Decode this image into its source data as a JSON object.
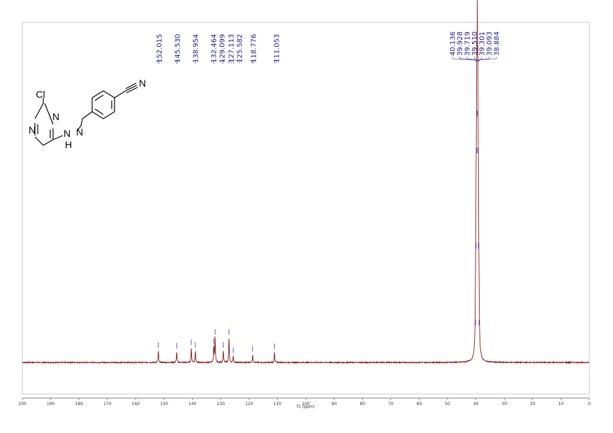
{
  "colors": {
    "spectrum": "#8b1a1a",
    "peak_marker": "#2b2bbd",
    "label": "#1a1a8c",
    "frame": "#c8c8c8",
    "axis": "#555555"
  },
  "molecule": {
    "atoms": {
      "cl": "Cl",
      "n_ring_top": "N",
      "n_ring_left": "N",
      "n_hydrazone": "N",
      "nh_n": "N",
      "nh_h": "H",
      "nitrile_n": "N"
    }
  },
  "chart_data": {
    "type": "line",
    "title": "",
    "xlabel": "f1 (ppm)",
    "ylabel": "",
    "xlim": [
      200,
      0
    ],
    "x_reversed": true,
    "x_ticks": [
      200,
      190,
      180,
      170,
      160,
      150,
      140,
      130,
      120,
      110,
      100,
      90,
      80,
      70,
      60,
      50,
      40,
      30,
      20,
      10,
      0
    ],
    "grid": false,
    "series": [
      {
        "peaks": [
          {
            "ppm": 152.015,
            "height": 0.045
          },
          {
            "ppm": 145.53,
            "height": 0.042
          },
          {
            "ppm": 140.4,
            "height": 0.055
          },
          {
            "ppm": 138.954,
            "height": 0.045
          },
          {
            "ppm": 132.464,
            "height": 0.06
          },
          {
            "ppm": 132.0,
            "height": 0.095
          },
          {
            "ppm": 129.099,
            "height": 0.045
          },
          {
            "ppm": 127.113,
            "height": 0.095
          },
          {
            "ppm": 125.582,
            "height": 0.025
          },
          {
            "ppm": 118.776,
            "height": 0.03
          },
          {
            "ppm": 111.053,
            "height": 0.04
          },
          {
            "ppm": 40.136,
            "height": 0.13
          },
          {
            "ppm": 39.928,
            "height": 0.42
          },
          {
            "ppm": 39.719,
            "height": 0.78
          },
          {
            "ppm": 39.51,
            "height": 0.92
          },
          {
            "ppm": 39.301,
            "height": 0.78
          },
          {
            "ppm": 39.093,
            "height": 0.42
          },
          {
            "ppm": 38.884,
            "height": 0.13
          }
        ]
      }
    ],
    "peak_labels_left": [
      "152.015",
      "145.530",
      "138.954",
      "132.464",
      "129.099",
      "127.113",
      "125.582",
      "118.776",
      "111.053"
    ],
    "peak_labels_left_ppm": [
      152.015,
      145.53,
      138.954,
      132.464,
      129.099,
      127.113,
      125.582,
      118.776,
      111.053
    ],
    "peak_labels_right": [
      "40.136",
      "39.928",
      "39.719",
      "39.510",
      "39.301",
      "39.093",
      "38.884"
    ],
    "peak_labels_right_ppm": [
      40.136,
      39.928,
      39.719,
      39.51,
      39.301,
      39.093,
      38.884
    ]
  }
}
